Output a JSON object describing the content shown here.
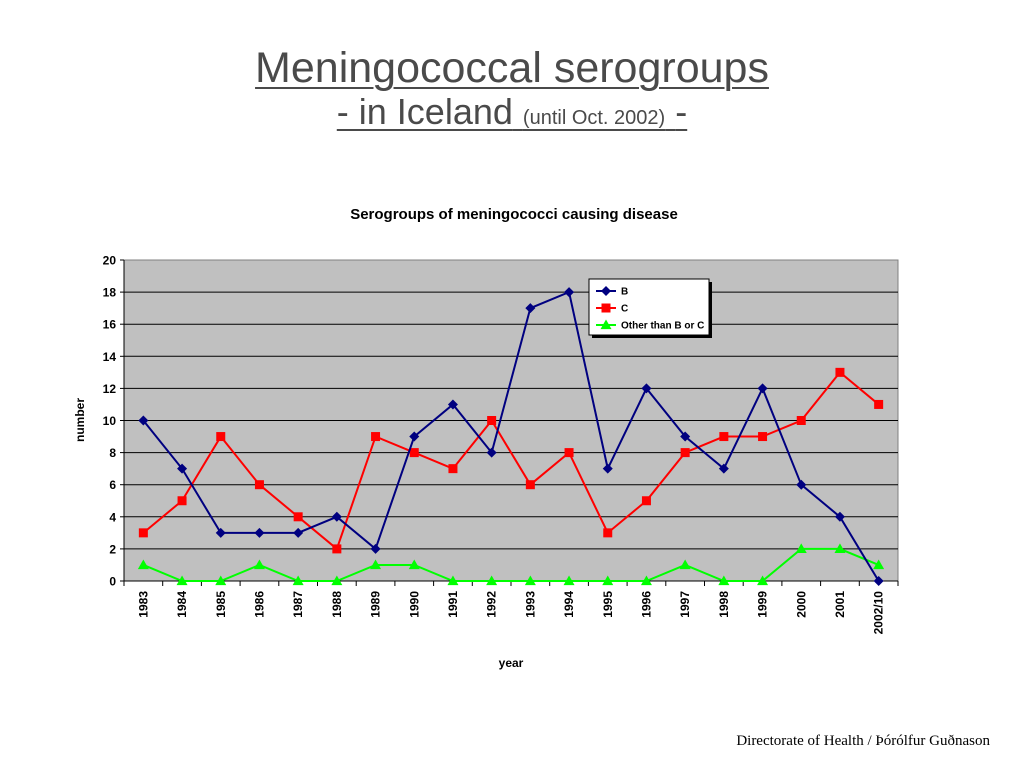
{
  "slide": {
    "title_line1": "Meningococcal serogroups",
    "title_line2_a": "- in Iceland",
    "title_line2_small": "(until Oct. 2002)",
    "title_line2_b": "-",
    "footer": "Directorate of Health / Þórólfur Guðnason"
  },
  "chart_data": {
    "type": "line",
    "title": "Serogroups of meningococci causing disease",
    "xlabel": "year",
    "ylabel": "number",
    "ylim": [
      0,
      20
    ],
    "ytick_step": 2,
    "grid": true,
    "legend_position": "top-right",
    "plot_background": "#c0c0c0",
    "categories": [
      "1983",
      "1984",
      "1985",
      "1986",
      "1987",
      "1988",
      "1989",
      "1990",
      "1991",
      "1992",
      "1993",
      "1994",
      "1995",
      "1996",
      "1997",
      "1998",
      "1999",
      "2000",
      "2001",
      "2002/10"
    ],
    "series": [
      {
        "name": "B",
        "color": "#000080",
        "marker": "diamond",
        "values": [
          10,
          7,
          3,
          3,
          3,
          4,
          2,
          9,
          11,
          8,
          17,
          18,
          7,
          12,
          9,
          7,
          12,
          6,
          4,
          0
        ]
      },
      {
        "name": "C",
        "color": "#ff0000",
        "marker": "square",
        "values": [
          3,
          5,
          9,
          6,
          4,
          2,
          9,
          8,
          7,
          10,
          6,
          8,
          3,
          5,
          8,
          9,
          9,
          10,
          13,
          11
        ]
      },
      {
        "name": "Other than B or C",
        "color": "#00ff00",
        "marker": "triangle",
        "values": [
          1,
          0,
          0,
          1,
          0,
          0,
          1,
          1,
          0,
          0,
          0,
          0,
          0,
          0,
          1,
          0,
          0,
          2,
          2,
          1
        ]
      }
    ]
  }
}
